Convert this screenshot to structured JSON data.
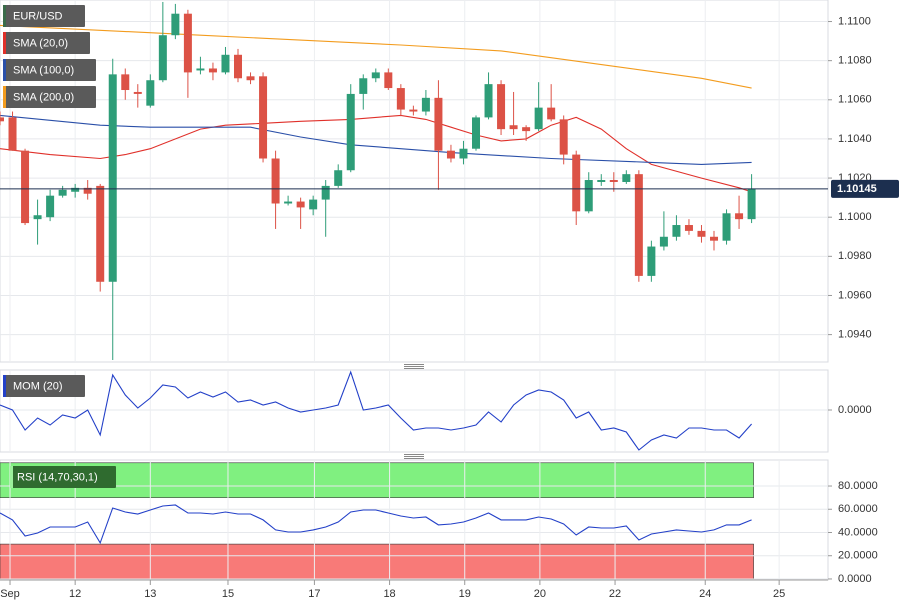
{
  "chart_data": [
    {
      "type": "candlestick",
      "ohlc": {
        "name": "EUR/USD",
        "legend_color": "#3a6b4a",
        "up_color": "#2e9d78",
        "down_color": "#dc5246",
        "open": [
          1.1051,
          1.1051,
          1.1034,
          1.0999,
          1.1,
          1.1011,
          1.1013,
          1.1015,
          1.1016,
          1.0967,
          1.1073,
          1.1064,
          1.1057,
          1.107,
          1.1093,
          1.1104,
          1.1075,
          1.1076,
          1.1074,
          1.1083,
          1.1072,
          1.1072,
          1.103,
          1.1007,
          1.1008,
          1.1004,
          1.1009,
          1.1016,
          1.1024,
          1.1063,
          1.1071,
          1.1074,
          1.1066,
          1.1055,
          1.1054,
          1.1061,
          1.1034,
          1.103,
          1.1035,
          1.1051,
          1.1068,
          1.1047,
          1.1046,
          1.1045,
          1.1056,
          1.105,
          1.1032,
          1.1003,
          1.1018,
          1.1019,
          1.1018,
          1.1022,
          1.097,
          1.0985,
          1.099,
          1.0996,
          1.0993,
          1.099,
          1.0988,
          1.1002,
          1.0999
        ],
        "high": [
          1.1054,
          1.1054,
          1.1035,
          1.1009,
          1.1014,
          1.1016,
          1.1017,
          1.1019,
          1.1017,
          1.1081,
          1.1076,
          1.1068,
          1.1073,
          1.111,
          1.1109,
          1.1106,
          1.1082,
          1.1079,
          1.1087,
          1.1086,
          1.1074,
          1.1074,
          1.1034,
          1.1011,
          1.101,
          1.1011,
          1.1019,
          1.1027,
          1.1068,
          1.1073,
          1.1076,
          1.1076,
          1.1068,
          1.1057,
          1.1065,
          1.107,
          1.1037,
          1.1039,
          1.1052,
          1.1074,
          1.107,
          1.1064,
          1.1047,
          1.1069,
          1.1068,
          1.1052,
          1.1034,
          1.1023,
          1.1022,
          1.1023,
          1.1024,
          1.1024,
          1.0988,
          1.1003,
          1.1001,
          1.0999,
          1.0996,
          1.0993,
          1.1004,
          1.1011,
          1.1022
        ],
        "low": [
          1.1047,
          1.1034,
          1.0996,
          1.0986,
          1.0998,
          1.101,
          1.101,
          1.1009,
          1.0962,
          1.0927,
          1.106,
          1.1056,
          1.1056,
          1.1069,
          1.1091,
          1.1061,
          1.1073,
          1.107,
          1.1073,
          1.1069,
          1.1068,
          1.1028,
          1.0994,
          1.1006,
          1.0994,
          1.1001,
          1.099,
          1.1015,
          1.1023,
          1.1055,
          1.1069,
          1.1065,
          1.1052,
          1.1052,
          1.1052,
          1.1014,
          1.1028,
          1.1027,
          1.1034,
          1.105,
          1.1042,
          1.1042,
          1.1039,
          1.1044,
          1.1049,
          1.1027,
          1.0996,
          1.1002,
          1.1016,
          1.1013,
          1.1017,
          1.0967,
          1.0967,
          1.0983,
          1.0988,
          1.0991,
          1.0987,
          1.0983,
          1.0986,
          1.0994,
          1.0997
        ],
        "close": [
          1.1049,
          1.1034,
          1.0997,
          1.1001,
          1.1011,
          1.1014,
          1.1015,
          1.1012,
          1.0967,
          1.1073,
          1.1065,
          1.1063,
          1.107,
          1.1093,
          1.1104,
          1.1074,
          1.1076,
          1.1074,
          1.1083,
          1.1071,
          1.107,
          1.103,
          1.1007,
          1.1008,
          1.1005,
          1.1009,
          1.1016,
          1.1024,
          1.1063,
          1.1071,
          1.1074,
          1.1066,
          1.1055,
          1.1054,
          1.1061,
          1.1034,
          1.103,
          1.1035,
          1.1051,
          1.1068,
          1.1045,
          1.1045,
          1.1044,
          1.1056,
          1.105,
          1.1032,
          1.1003,
          1.1019,
          1.1019,
          1.1018,
          1.1022,
          1.097,
          1.0985,
          1.099,
          1.0996,
          1.0993,
          1.099,
          1.0988,
          1.1002,
          1.0999,
          1.10145
        ]
      },
      "series": [
        {
          "name": "SMA (20,0)",
          "color": "#e0302a",
          "x": [
            0,
            4,
            8,
            10,
            12,
            16,
            18,
            21,
            24,
            28,
            32,
            34,
            36,
            38,
            40,
            42,
            44,
            46,
            48,
            50,
            52,
            56,
            59,
            60
          ],
          "values": [
            1.1035,
            1.1032,
            1.103,
            1.1032,
            1.1035,
            1.1045,
            1.1047,
            1.1048,
            1.1049,
            1.105,
            1.1052,
            1.105,
            1.1046,
            1.1042,
            1.1039,
            1.104,
            1.1047,
            1.1051,
            1.1045,
            1.1035,
            1.1027,
            1.102,
            1.1015,
            1.1013
          ]
        },
        {
          "name": "SMA (100,0)",
          "color": "#2a4fa8",
          "x": [
            0,
            8,
            12,
            20,
            24,
            28,
            36,
            44,
            52,
            56,
            60
          ],
          "values": [
            1.1052,
            1.1047,
            1.1046,
            1.1046,
            1.1041,
            1.1037,
            1.1033,
            1.103,
            1.1028,
            1.1027,
            1.1028
          ]
        },
        {
          "name": "SMA (200,0)",
          "color": "#f39c1e",
          "x": [
            0,
            16,
            32,
            40,
            48,
            56,
            60
          ],
          "values": [
            1.1098,
            1.1093,
            1.1088,
            1.1085,
            1.1078,
            1.1071,
            1.1066
          ]
        }
      ],
      "last_price": {
        "value": 1.10145,
        "label": "1.10145",
        "color": "#1c2f4f"
      },
      "xlim": [
        0,
        66.1
      ],
      "ylim": [
        1.0926,
        1.1111
      ],
      "yticks": [
        {
          "value": 1.094,
          "label": "1.0940"
        },
        {
          "value": 1.096,
          "label": "1.0960"
        },
        {
          "value": 1.098,
          "label": "1.0980"
        },
        {
          "value": 1.1,
          "label": "1.1000"
        },
        {
          "value": 1.102,
          "label": "1.1020"
        },
        {
          "value": 1.104,
          "label": "1.1040"
        },
        {
          "value": 1.106,
          "label": "1.1060"
        },
        {
          "value": 1.108,
          "label": "1.1080"
        },
        {
          "value": 1.11,
          "label": "1.1100"
        }
      ],
      "grid": true
    },
    {
      "type": "line",
      "series": [
        {
          "name": "MOM (20)",
          "color": "#2340c8",
          "values": [
            0.0005,
            0,
            -0.002,
            -0.0008,
            -0.0015,
            -0.0005,
            -0.0008,
            0,
            -0.0025,
            0.0035,
            0.0015,
            0.0002,
            0.0012,
            0.0025,
            0.0023,
            0.0012,
            0.0018,
            0.0013,
            0.0018,
            0.0008,
            0.001,
            0.0005,
            0.0008,
            0.0002,
            -0.0002,
            0,
            0.0002,
            0.0005,
            0.0038,
            0,
            0.0002,
            0.0005,
            -0.0008,
            -0.002,
            -0.0018,
            -0.0018,
            -0.002,
            -0.0018,
            -0.0015,
            -0.0002,
            -0.0012,
            0.0005,
            0.0015,
            0.002,
            0.0018,
            0.001,
            -0.0008,
            -0.0002,
            -0.002,
            -0.0018,
            -0.0022,
            -0.004,
            -0.003,
            -0.0025,
            -0.0028,
            -0.0018,
            -0.0018,
            -0.002,
            -0.002,
            -0.0028,
            -0.0014
          ]
        }
      ],
      "xlim": [
        0,
        66.1
      ],
      "ylim": [
        -0.0042,
        0.004
      ],
      "yticks": [
        {
          "value": 0,
          "label": "0.0000"
        }
      ],
      "grid": true
    },
    {
      "type": "line",
      "series": [
        {
          "name": "RSI (14,70,30,1)",
          "color": "#2340c8",
          "values": [
            56.8,
            50.8,
            37.0,
            39.6,
            44.7,
            44.7,
            44.7,
            49.0,
            31.0,
            61.1,
            57.6,
            55.9,
            59.4,
            62.8,
            63.7,
            56.8,
            56.8,
            55.9,
            57.6,
            55.9,
            55.9,
            50.8,
            42.2,
            40.4,
            40.4,
            42.2,
            44.7,
            49.0,
            57.6,
            59.4,
            59.4,
            56.8,
            54.2,
            52.5,
            53.3,
            46.5,
            47.3,
            49.0,
            52.5,
            56.8,
            50.8,
            50.8,
            50.8,
            53.3,
            51.6,
            47.3,
            37.8,
            44.7,
            43.9,
            43.9,
            45.6,
            33.5,
            38.7,
            40.4,
            42.2,
            41.3,
            40.4,
            42.2,
            46.5,
            46.5,
            50.8
          ]
        }
      ],
      "bands": [
        {
          "from": 70,
          "to": 100,
          "color": "#80f080"
        },
        {
          "from": 0,
          "to": 30,
          "color": "#f87a78"
        }
      ],
      "xlim": [
        0,
        66.1
      ],
      "ylim": [
        -0.9,
        102.4
      ],
      "yticks": [
        {
          "value": 0,
          "label": "0.0000"
        },
        {
          "value": 20,
          "label": "20.0000"
        },
        {
          "value": 40,
          "label": "40.0000"
        },
        {
          "value": 60,
          "label": "60.0000"
        },
        {
          "value": 80,
          "label": "80.0000"
        }
      ],
      "xticks": [
        {
          "value": 0.8,
          "label": "Sep"
        },
        {
          "value": 6,
          "label": "12"
        },
        {
          "value": 12,
          "label": "13"
        },
        {
          "value": 18.2,
          "label": "15"
        },
        {
          "value": 25.1,
          "label": "17"
        },
        {
          "value": 31.1,
          "label": "18"
        },
        {
          "value": 37.1,
          "label": "19"
        },
        {
          "value": 43.1,
          "label": "20"
        },
        {
          "value": 49.1,
          "label": "22"
        },
        {
          "value": 56.3,
          "label": "24"
        },
        {
          "value": 62.2,
          "label": "25"
        }
      ],
      "grid": true
    }
  ]
}
